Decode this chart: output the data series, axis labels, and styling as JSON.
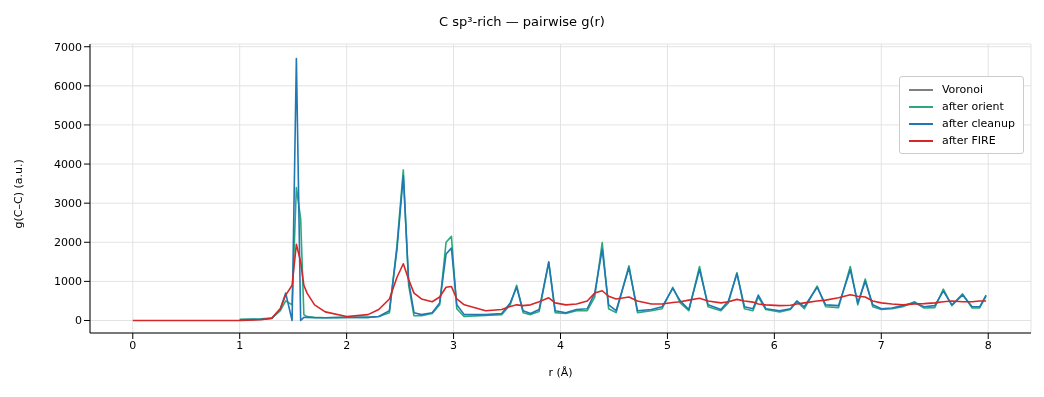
{
  "chart_data": {
    "type": "line",
    "title": "C sp³-rich — pairwise g(r)",
    "xlabel": "r (Å)",
    "ylabel": "g(C–C) (a.u.)",
    "x": [
      0,
      0.5,
      0.9,
      1.0,
      1.2,
      1.3,
      1.38,
      1.43,
      1.49,
      1.53,
      1.57,
      1.6,
      1.63,
      1.7,
      1.8,
      2.0,
      2.2,
      2.3,
      2.4,
      2.47,
      2.53,
      2.58,
      2.63,
      2.7,
      2.8,
      2.87,
      2.93,
      2.98,
      3.03,
      3.1,
      3.3,
      3.45,
      3.53,
      3.59,
      3.65,
      3.72,
      3.8,
      3.89,
      3.95,
      4.05,
      4.15,
      4.25,
      4.32,
      4.39,
      4.45,
      4.52,
      4.64,
      4.72,
      4.85,
      4.95,
      5.05,
      5.12,
      5.2,
      5.3,
      5.38,
      5.5,
      5.57,
      5.65,
      5.72,
      5.8,
      5.85,
      5.92,
      6.05,
      6.15,
      6.21,
      6.28,
      6.4,
      6.48,
      6.6,
      6.71,
      6.78,
      6.85,
      6.92,
      7.0,
      7.1,
      7.2,
      7.31,
      7.4,
      7.5,
      7.58,
      7.66,
      7.76,
      7.85,
      7.92,
      7.98
    ],
    "series": [
      {
        "name": "Voronoi",
        "color": "#7f7f7f",
        "values": [
          null,
          null,
          null,
          null,
          null,
          null,
          null,
          null,
          null,
          null,
          null,
          null,
          null,
          null,
          null,
          null,
          null,
          null,
          null,
          null,
          null,
          null,
          null,
          null,
          null,
          null,
          null,
          null,
          null,
          null,
          null,
          null,
          null,
          null,
          null,
          null,
          null,
          null,
          null,
          null,
          null,
          null,
          null,
          null,
          null,
          null,
          null,
          null,
          null,
          null,
          null,
          null,
          null,
          null,
          null,
          null,
          null,
          null,
          null,
          null,
          null,
          null,
          null,
          null,
          null,
          null,
          null,
          null,
          null,
          null,
          null,
          null,
          null,
          null,
          null,
          null,
          null,
          null,
          null,
          null,
          null,
          null,
          null,
          null,
          null
        ]
      },
      {
        "name": "after orient",
        "color": "#2ca87a",
        "values": [
          null,
          null,
          null,
          30,
          40,
          60,
          250,
          500,
          400,
          3400,
          2600,
          150,
          100,
          80,
          70,
          80,
          80,
          100,
          200,
          1900,
          3850,
          900,
          120,
          120,
          180,
          400,
          2000,
          2150,
          300,
          100,
          130,
          150,
          400,
          900,
          200,
          150,
          230,
          1480,
          200,
          180,
          250,
          250,
          600,
          1990,
          300,
          200,
          1400,
          200,
          250,
          300,
          850,
          450,
          250,
          1380,
          350,
          250,
          450,
          1220,
          300,
          250,
          600,
          280,
          220,
          280,
          480,
          300,
          880,
          350,
          330,
          1380,
          400,
          1060,
          350,
          280,
          300,
          350,
          480,
          320,
          330,
          800,
          380,
          680,
          320,
          320,
          620
        ]
      },
      {
        "name": "after cleanup",
        "color": "#1f77b4",
        "values": [
          null,
          null,
          null,
          20,
          30,
          50,
          300,
          700,
          0,
          6700,
          0,
          80,
          80,
          70,
          70,
          80,
          80,
          100,
          250,
          1800,
          3700,
          1000,
          200,
          150,
          200,
          450,
          1700,
          1850,
          400,
          150,
          150,
          180,
          450,
          850,
          250,
          180,
          280,
          1500,
          250,
          200,
          280,
          300,
          700,
          1820,
          400,
          250,
          1350,
          250,
          280,
          350,
          820,
          500,
          280,
          1300,
          400,
          280,
          500,
          1200,
          350,
          300,
          650,
          300,
          250,
          300,
          500,
          350,
          850,
          400,
          380,
          1300,
          450,
          1000,
          400,
          300,
          320,
          380,
          450,
          350,
          380,
          750,
          400,
          650,
          350,
          350,
          650
        ]
      },
      {
        "name": "after FIRE",
        "color": "#d62728",
        "values": [
          0,
          0,
          0,
          0,
          20,
          60,
          300,
          650,
          900,
          1950,
          1500,
          900,
          700,
          400,
          220,
          100,
          150,
          280,
          550,
          1100,
          1450,
          1050,
          700,
          550,
          480,
          600,
          850,
          870,
          550,
          400,
          250,
          280,
          360,
          400,
          380,
          400,
          480,
          580,
          450,
          400,
          420,
          500,
          700,
          760,
          620,
          550,
          600,
          500,
          420,
          420,
          460,
          480,
          520,
          570,
          500,
          450,
          480,
          540,
          500,
          470,
          420,
          400,
          380,
          390,
          420,
          450,
          500,
          520,
          580,
          660,
          620,
          600,
          500,
          450,
          420,
          400,
          420,
          430,
          450,
          480,
          500,
          480,
          480,
          500,
          500
        ]
      }
    ],
    "xlim": [
      -0.4,
      8.4
    ],
    "xticks": [
      0,
      1,
      2,
      3,
      4,
      5,
      6,
      7,
      8
    ],
    "ylim": [
      -320,
      7070
    ],
    "yticks": [
      0,
      1000,
      2000,
      3000,
      4000,
      5000,
      6000,
      7000
    ],
    "grid": true,
    "legend": "top right",
    "marker": "none",
    "line_style": "solid"
  }
}
